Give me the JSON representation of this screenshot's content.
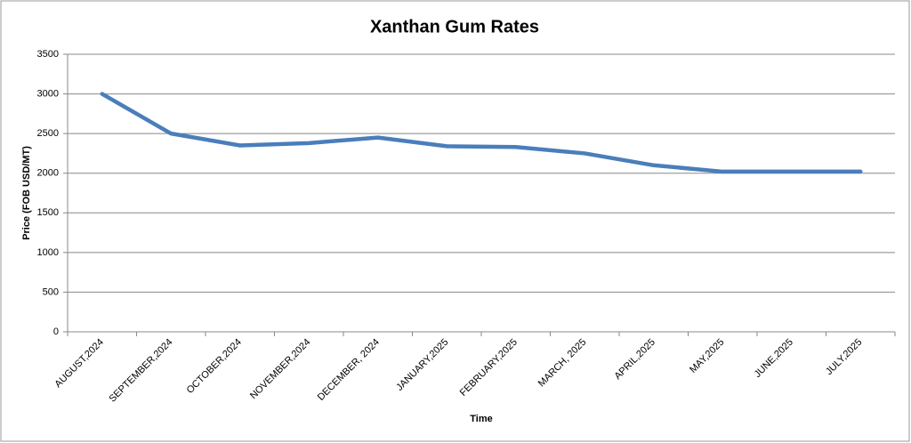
{
  "chart_data": {
    "type": "line",
    "title": "Xanthan Gum Rates",
    "x_label": "Time",
    "y_label": "Price (FOB USD/MT)",
    "categories": [
      "AUGUST,2024",
      "SEPTEMBER,2024",
      "OCTOBER,2024",
      "NOVEMBER,2024",
      "DECEMBER, 2024",
      "JANUARY,2025",
      "FEBRUARY,2025",
      "MARCH, 2025",
      "APRIL,2025",
      "MAY,2025",
      "JUNE,2025",
      "JULY,2025"
    ],
    "series": [
      {
        "name": "Price",
        "color": "#4a7ebb",
        "values": [
          3000,
          2500,
          2350,
          2380,
          2450,
          2340,
          2330,
          2250,
          2100,
          2020,
          2020,
          2020
        ]
      }
    ],
    "ylim": [
      0,
      3500
    ],
    "yticks": [
      0,
      500,
      1000,
      1500,
      2000,
      2500,
      3000,
      3500
    ],
    "grid": true
  }
}
